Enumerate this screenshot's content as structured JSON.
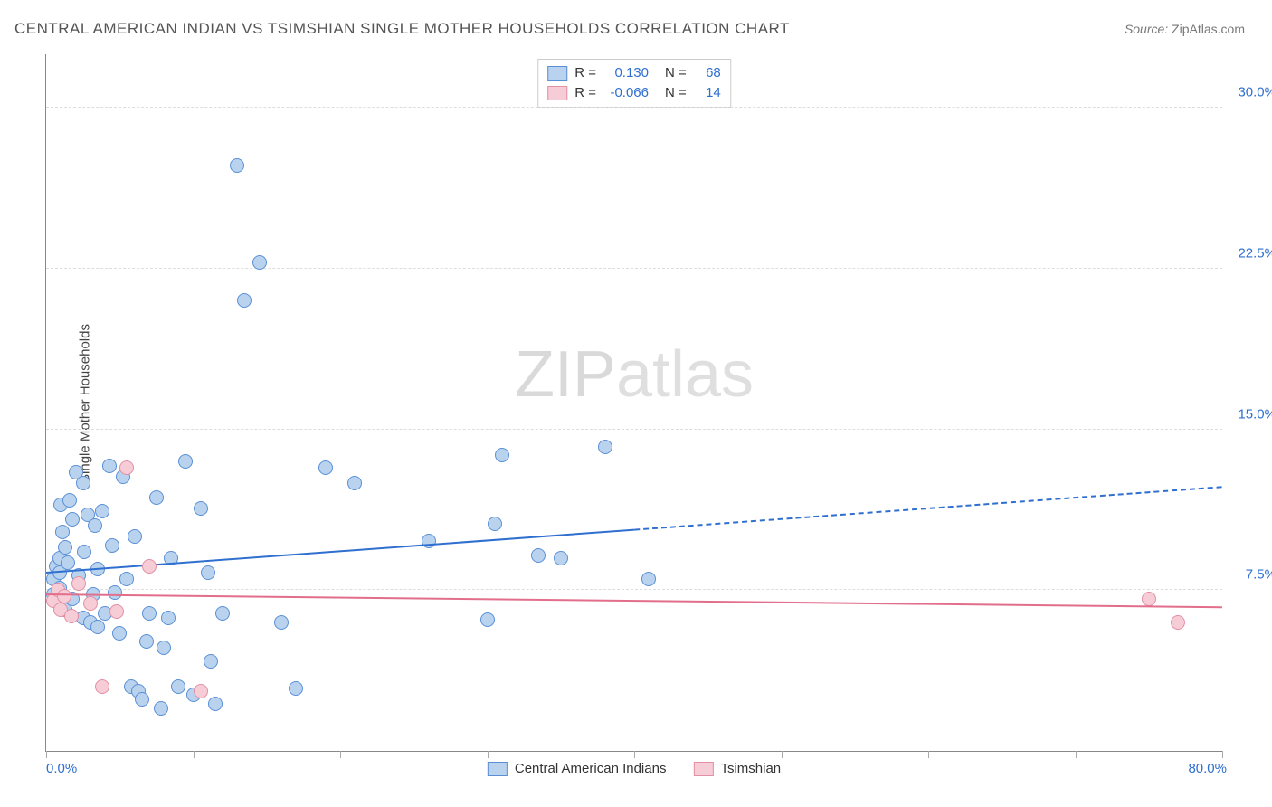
{
  "title": "CENTRAL AMERICAN INDIAN VS TSIMSHIAN SINGLE MOTHER HOUSEHOLDS CORRELATION CHART",
  "source_label": "Source:",
  "source_value": "ZipAtlas.com",
  "ylabel": "Single Mother Households",
  "watermark_a": "ZIP",
  "watermark_b": "atlas",
  "chart": {
    "type": "scatter",
    "background_color": "#ffffff",
    "grid_color": "#dddddd",
    "axis_color": "#888888",
    "xlim": [
      0,
      80
    ],
    "ylim": [
      0,
      32.5
    ],
    "xtick_step": 10,
    "xlabel_min": "0.0%",
    "xlabel_max": "80.0%",
    "xlabel_color": "#2f6fd0",
    "yticks": [
      {
        "v": 7.5,
        "label": "7.5%"
      },
      {
        "v": 15.0,
        "label": "15.0%"
      },
      {
        "v": 22.5,
        "label": "22.5%"
      },
      {
        "v": 30.0,
        "label": "30.0%"
      }
    ],
    "ytick_color": "#2f6fd0",
    "marker_radius": 8,
    "marker_border": 1.2,
    "series": [
      {
        "key": "cai",
        "name": "Central American Indians",
        "fill": "#b9d3ee",
        "stroke": "#5a8fd6",
        "R": "0.130",
        "N": "68",
        "trend": {
          "y0": 8.3,
          "y1": 12.3,
          "solid_to_x": 40,
          "color": "#2f6fd0",
          "width": 2.2,
          "dash": "6,5"
        },
        "points": [
          [
            0.5,
            8.0
          ],
          [
            0.5,
            7.3
          ],
          [
            0.7,
            8.6
          ],
          [
            0.9,
            7.6
          ],
          [
            0.9,
            9.0
          ],
          [
            0.9,
            8.3
          ],
          [
            1.0,
            11.5
          ],
          [
            1.1,
            10.2
          ],
          [
            1.2,
            7.0
          ],
          [
            1.3,
            6.6
          ],
          [
            1.3,
            9.5
          ],
          [
            1.5,
            8.8
          ],
          [
            1.6,
            11.7
          ],
          [
            1.8,
            10.8
          ],
          [
            1.8,
            7.1
          ],
          [
            2.0,
            13.0
          ],
          [
            2.2,
            8.2
          ],
          [
            2.5,
            6.2
          ],
          [
            2.5,
            12.5
          ],
          [
            2.6,
            9.3
          ],
          [
            2.8,
            11.0
          ],
          [
            3.0,
            6.0
          ],
          [
            3.2,
            7.3
          ],
          [
            3.3,
            10.5
          ],
          [
            3.5,
            5.8
          ],
          [
            3.5,
            8.5
          ],
          [
            3.8,
            11.2
          ],
          [
            4.0,
            6.4
          ],
          [
            4.3,
            13.3
          ],
          [
            4.5,
            9.6
          ],
          [
            4.7,
            7.4
          ],
          [
            5.0,
            5.5
          ],
          [
            5.2,
            12.8
          ],
          [
            5.5,
            8.0
          ],
          [
            5.8,
            3.0
          ],
          [
            6.0,
            10.0
          ],
          [
            6.3,
            2.8
          ],
          [
            6.5,
            2.4
          ],
          [
            6.8,
            5.1
          ],
          [
            7.0,
            6.4
          ],
          [
            7.5,
            11.8
          ],
          [
            7.8,
            2.0
          ],
          [
            8.0,
            4.8
          ],
          [
            8.3,
            6.2
          ],
          [
            8.5,
            9.0
          ],
          [
            9.0,
            3.0
          ],
          [
            9.5,
            13.5
          ],
          [
            10.0,
            2.6
          ],
          [
            10.5,
            11.3
          ],
          [
            11.0,
            8.3
          ],
          [
            11.2,
            4.2
          ],
          [
            11.5,
            2.2
          ],
          [
            12.0,
            6.4
          ],
          [
            13.0,
            27.3
          ],
          [
            13.5,
            21.0
          ],
          [
            14.5,
            22.8
          ],
          [
            16.0,
            6.0
          ],
          [
            17.0,
            2.9
          ],
          [
            19.0,
            13.2
          ],
          [
            21.0,
            12.5
          ],
          [
            26.0,
            9.8
          ],
          [
            30.0,
            6.1
          ],
          [
            30.5,
            10.6
          ],
          [
            31.0,
            13.8
          ],
          [
            33.5,
            9.1
          ],
          [
            35.0,
            9.0
          ],
          [
            38.0,
            14.2
          ],
          [
            41.0,
            8.0
          ]
        ]
      },
      {
        "key": "tsi",
        "name": "Tsimshian",
        "fill": "#f6cdd7",
        "stroke": "#e38fa4",
        "R": "-0.066",
        "N": "14",
        "trend": {
          "y0": 7.3,
          "y1": 6.7,
          "solid_to_x": 80,
          "color": "#e26e8c",
          "width": 2.2,
          "dash": ""
        },
        "points": [
          [
            0.5,
            7.0
          ],
          [
            0.8,
            7.5
          ],
          [
            1.0,
            6.6
          ],
          [
            1.2,
            7.2
          ],
          [
            1.7,
            6.3
          ],
          [
            2.2,
            7.8
          ],
          [
            3.0,
            6.9
          ],
          [
            3.8,
            3.0
          ],
          [
            4.8,
            6.5
          ],
          [
            5.5,
            13.2
          ],
          [
            7.0,
            8.6
          ],
          [
            10.5,
            2.8
          ],
          [
            75.0,
            7.1
          ],
          [
            77.0,
            6.0
          ]
        ]
      }
    ],
    "legend_top": {
      "R_label": "R =",
      "N_label": "N =",
      "value_color": "#2f6fd0"
    }
  }
}
